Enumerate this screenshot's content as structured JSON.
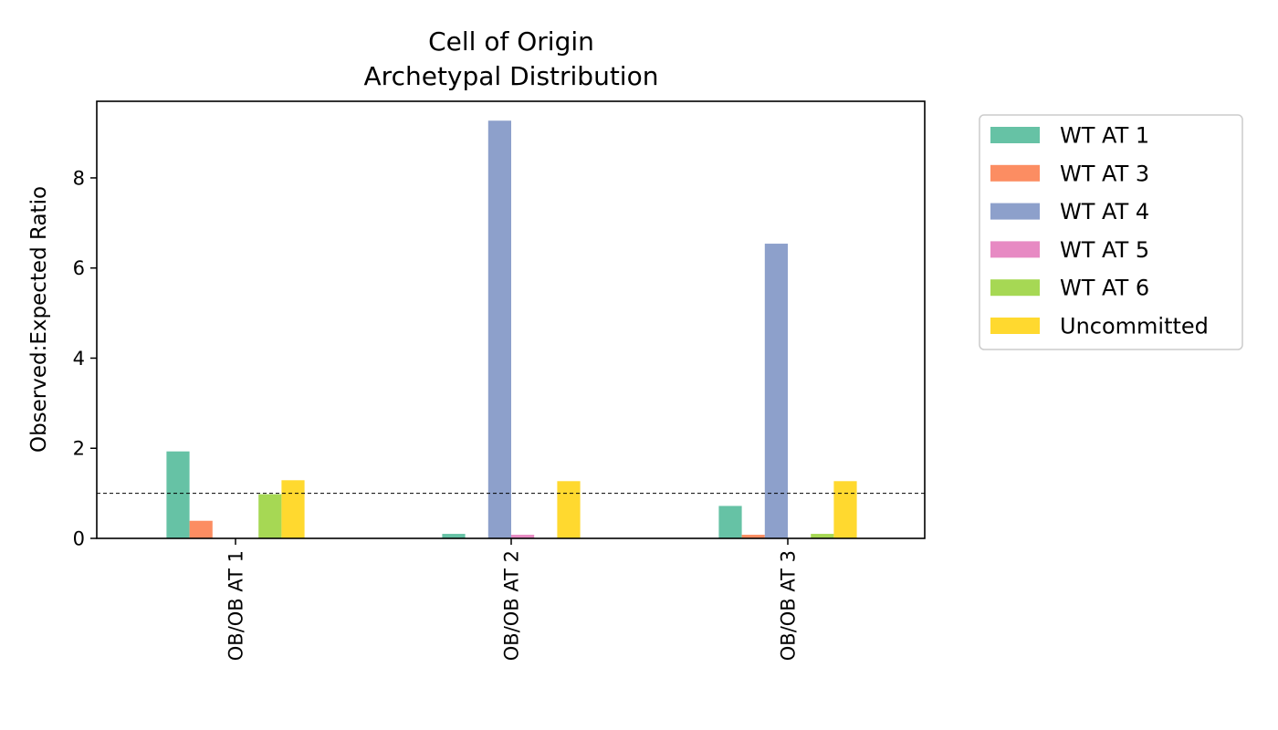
{
  "chart_data": {
    "type": "bar",
    "title": "Cell of Origin\nArchetypal Distribution",
    "title_lines": [
      "Cell of Origin",
      "Archetypal Distribution"
    ],
    "xlabel": "",
    "ylabel": "Observed:Expected Ratio",
    "categories": [
      "OB/OB AT 1",
      "OB/OB AT 2",
      "OB/OB AT 3"
    ],
    "ylim": [
      0,
      9.7
    ],
    "yticks": [
      0,
      2,
      4,
      6,
      8
    ],
    "reference_line": 1,
    "grid": false,
    "legend_position": "outside-right",
    "series": [
      {
        "name": "WT AT 1",
        "color": "#66c2a5",
        "values": [
          1.93,
          0.1,
          0.72
        ]
      },
      {
        "name": "WT AT 3",
        "color": "#fc8d62",
        "values": [
          0.39,
          0.0,
          0.08
        ]
      },
      {
        "name": "WT AT 4",
        "color": "#8da0cb",
        "values": [
          0.0,
          9.27,
          6.54
        ]
      },
      {
        "name": "WT AT 5",
        "color": "#e78ac3",
        "values": [
          0.0,
          0.08,
          0.0
        ]
      },
      {
        "name": "WT AT 6",
        "color": "#a6d854",
        "values": [
          0.98,
          0.0,
          0.1
        ]
      },
      {
        "name": "Uncommitted",
        "color": "#ffd92f",
        "values": [
          1.29,
          1.27,
          1.27
        ]
      }
    ]
  }
}
